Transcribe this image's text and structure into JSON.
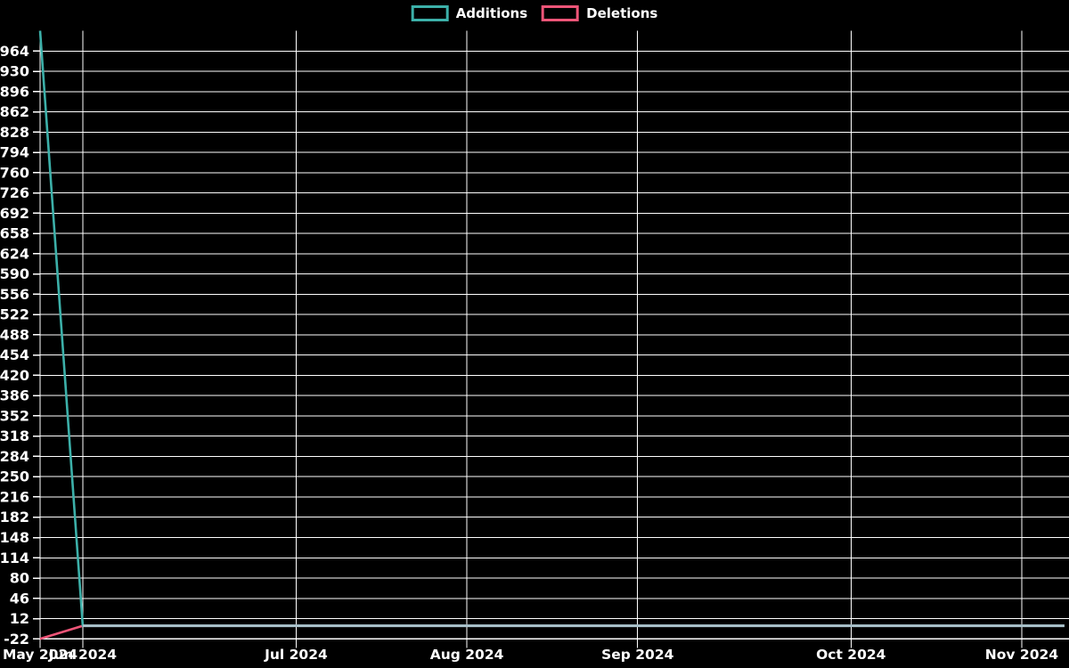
{
  "legend": {
    "items": [
      {
        "label": "Additions"
      },
      {
        "label": "Deletions"
      }
    ]
  },
  "chart_data": {
    "type": "line",
    "title": "",
    "xlabel": "",
    "ylabel": "",
    "x": [
      "2024-05-26",
      "2024-06-02",
      "2024-06-09",
      "2024-06-16",
      "2024-06-23",
      "2024-06-30",
      "2024-07-07",
      "2024-07-14",
      "2024-07-21",
      "2024-07-28",
      "2024-08-04",
      "2024-08-11",
      "2024-08-18",
      "2024-08-25",
      "2024-09-01",
      "2024-09-08",
      "2024-09-15",
      "2024-09-22",
      "2024-09-29",
      "2024-10-06",
      "2024-10-13",
      "2024-10-20",
      "2024-10-27",
      "2024-11-03",
      "2024-11-10"
    ],
    "series": [
      {
        "name": "Additions",
        "color": "#3cb0a9",
        "values": [
          998,
          0,
          0,
          0,
          0,
          0,
          0,
          0,
          0,
          0,
          0,
          0,
          0,
          0,
          0,
          0,
          0,
          0,
          0,
          0,
          0,
          0,
          0,
          0,
          0
        ]
      },
      {
        "name": "Deletions",
        "color": "#ee5578",
        "values": [
          -22,
          0,
          0,
          0,
          0,
          0,
          0,
          0,
          0,
          0,
          0,
          0,
          0,
          0,
          0,
          0,
          0,
          0,
          0,
          0,
          0,
          0,
          0,
          0,
          0
        ]
      }
    ],
    "overlap_line_color": "#a9c1ca",
    "ylim": [
      -22,
      998
    ],
    "y_ticks": [
      964,
      930,
      896,
      862,
      828,
      794,
      760,
      726,
      692,
      658,
      624,
      590,
      556,
      522,
      488,
      454,
      420,
      386,
      352,
      318,
      284,
      250,
      216,
      182,
      148,
      114,
      80,
      46,
      12,
      -22
    ],
    "x_ticks": [
      {
        "label": "May 2024",
        "week_index": 0
      },
      {
        "label": "Jun 2024",
        "week_index": 1
      },
      {
        "label": "Jul 2024",
        "week_index": 6
      },
      {
        "label": "Aug 2024",
        "week_index": 10
      },
      {
        "label": "Sep 2024",
        "week_index": 14
      },
      {
        "label": "Oct 2024",
        "week_index": 19
      },
      {
        "label": "Nov 2024",
        "week_index": 23
      }
    ],
    "grid": true,
    "legend_position": "top-center",
    "colors": {
      "background": "#000000",
      "grid": "#ffffff",
      "text": "#ffffff"
    }
  }
}
